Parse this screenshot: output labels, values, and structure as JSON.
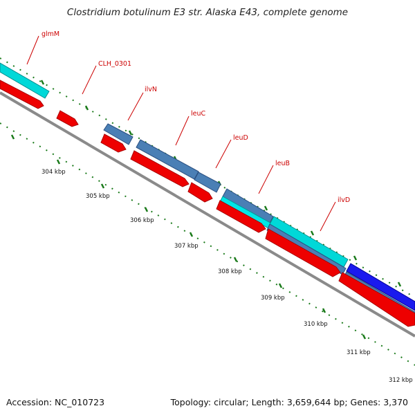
{
  "title": "Clostridium botulinum E3 str. Alaska E43, complete genome",
  "footer": {
    "accession": "Accession: NC_010723",
    "summary": "Topology: circular; Length: 3,659,644 bp; Genes: 3,370"
  },
  "genes": [
    {
      "name": "glmM"
    },
    {
      "name": "CLH_0301"
    },
    {
      "name": "ilvN"
    },
    {
      "name": "leuC"
    },
    {
      "name": "leuD"
    },
    {
      "name": "leuB"
    },
    {
      "name": "ilvD"
    }
  ],
  "ticks": [
    "304 kbp",
    "305 kbp",
    "306 kbp",
    "307 kbp",
    "308 kbp",
    "309 kbp",
    "310 kbp",
    "311 kbp",
    "312 kbp"
  ],
  "colors": {
    "backbone": "#8a8a8a",
    "cds": "#ee0000",
    "track_steelblue": "#4a7fb5",
    "track_cyan": "#00d8d8",
    "track_blue": "#1a1aee",
    "label": "#cc0000",
    "dots": "#1a7a1a"
  }
}
